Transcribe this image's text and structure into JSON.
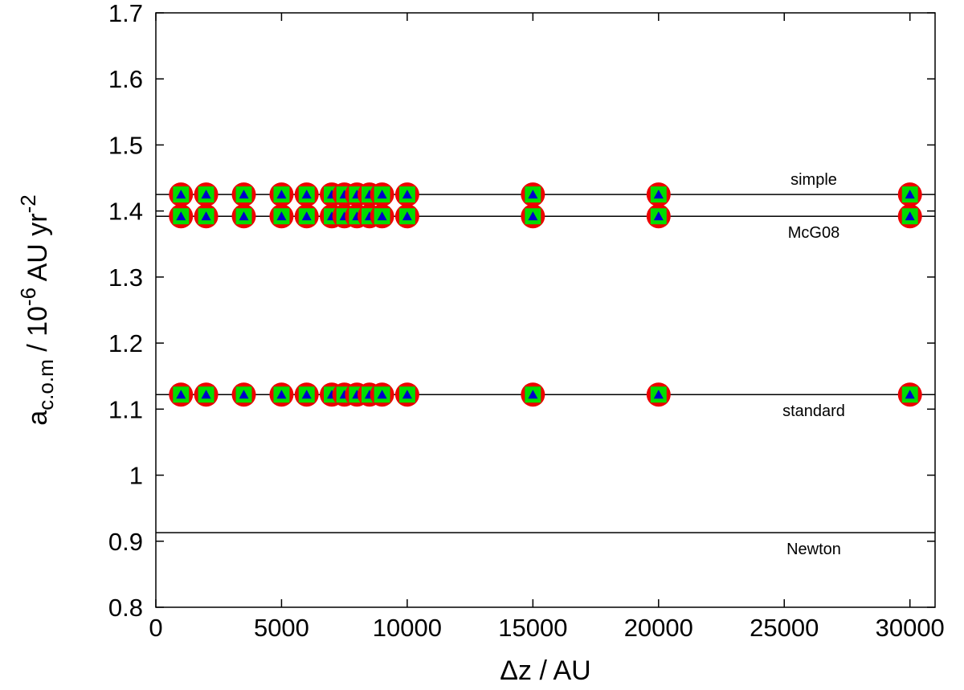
{
  "chart_data": {
    "type": "scatter",
    "xlabel": "Δz / AU",
    "ylabel": {
      "base": "a",
      "sub": "c.o.m",
      "mid": " / 10",
      "sup1": "-6",
      "unit": " AU yr",
      "sup2": "-2"
    },
    "xlim": [
      0,
      31000
    ],
    "ylim": [
      0.8,
      1.7
    ],
    "xticks": [
      0,
      5000,
      10000,
      15000,
      20000,
      25000,
      30000
    ],
    "yticks": [
      0.8,
      0.9,
      1,
      1.1,
      1.2,
      1.3,
      1.4,
      1.5,
      1.6,
      1.7
    ],
    "grid": false,
    "reference_lines": [
      {
        "label": "simple",
        "y": 1.425
      },
      {
        "label": "McG08",
        "y": 1.392
      },
      {
        "label": "standard",
        "y": 1.122
      },
      {
        "label": "Newton",
        "y": 0.913
      }
    ],
    "x": [
      1000,
      2000,
      3500,
      5000,
      6000,
      7000,
      7500,
      8000,
      8500,
      9000,
      10000,
      15000,
      20000,
      30000
    ],
    "series": [
      {
        "y_values": [
          1.425,
          1.425,
          1.425,
          1.425,
          1.425,
          1.425,
          1.425,
          1.425,
          1.425,
          1.425,
          1.425,
          1.425,
          1.425,
          1.425
        ]
      },
      {
        "y_values": [
          1.392,
          1.392,
          1.392,
          1.392,
          1.392,
          1.392,
          1.392,
          1.392,
          1.392,
          1.392,
          1.392,
          1.392,
          1.392,
          1.392
        ]
      },
      {
        "y_values": [
          1.122,
          1.122,
          1.122,
          1.122,
          1.122,
          1.122,
          1.122,
          1.122,
          1.122,
          1.122,
          1.122,
          1.122,
          1.122,
          1.122
        ]
      }
    ],
    "marker_colors": {
      "circle": "#ee0000",
      "square": "#00dd00",
      "triangle": "#0000cc"
    }
  }
}
